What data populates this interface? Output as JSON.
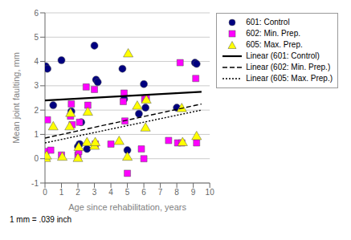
{
  "chart_data": {
    "type": "scatter",
    "xlabel": "Age since rehabilitation, years",
    "ylabel": "Mean joint faulting, mm",
    "xlim": [
      0,
      10
    ],
    "ylim": [
      -1,
      6
    ],
    "xticks": [
      0,
      1,
      2,
      3,
      4,
      5,
      6,
      7,
      8,
      9,
      10
    ],
    "yticks": [
      -1,
      0,
      1,
      2,
      3,
      4,
      5,
      6
    ],
    "grid": "y",
    "legend": "upper right",
    "annotations": [
      "1 mm = .039 inch"
    ],
    "series": [
      {
        "name": "601: Control",
        "type": "scatter",
        "color": "#000080",
        "marker": "circle",
        "x": [
          0.05,
          0.15,
          0.5,
          1.0,
          1.6,
          2.0,
          2.1,
          2.2,
          2.55,
          3.0,
          3.1,
          3.2,
          4.7,
          4.8,
          5.0,
          5.7,
          6.0,
          6.1,
          8.0,
          9.1,
          9.2
        ],
        "values": [
          3.8,
          3.7,
          2.2,
          4.05,
          1.95,
          0.5,
          0.6,
          1.5,
          0.4,
          4.65,
          3.25,
          3.15,
          3.7,
          2.45,
          0.35,
          1.85,
          3.07,
          2.1,
          2.1,
          3.95,
          3.9
        ]
      },
      {
        "name": "602: Min. Prep.",
        "type": "scatter",
        "color": "#FF00FF",
        "marker": "square",
        "x": [
          0.05,
          0.15,
          0.35,
          1.0,
          1.55,
          1.6,
          1.65,
          2.0,
          2.05,
          2.1,
          2.5,
          2.6,
          3.0,
          3.05,
          4.0,
          4.75,
          4.8,
          4.85,
          5.0,
          5.85,
          6.0,
          6.05,
          6.15,
          7.5,
          8.05,
          8.2,
          8.3,
          9.15,
          9.2
        ],
        "values": [
          0.3,
          1.6,
          0.35,
          0.15,
          1.75,
          2.25,
          1.4,
          0.15,
          0.3,
          1.5,
          2.95,
          2.2,
          2.85,
          0.6,
          0.6,
          2.35,
          2.7,
          1.55,
          -0.6,
          0.4,
          0.0,
          2.45,
          2.5,
          0.75,
          0.65,
          3.95,
          0.65,
          3.3,
          0.65
        ]
      },
      {
        "name": "605: Max. Prep.",
        "type": "scatter",
        "color": "#FFFF00",
        "marker": "triangle",
        "x": [
          0.05,
          0.1,
          0.5,
          1.05,
          1.5,
          1.55,
          2.0,
          2.05,
          2.55,
          2.6,
          3.0,
          3.05,
          4.5,
          5.0,
          5.05,
          5.6,
          6.1,
          6.15,
          8.3,
          8.35,
          9.2
        ],
        "values": [
          0.0,
          0.1,
          1.3,
          0.05,
          1.3,
          1.85,
          0.0,
          0.45,
          0.65,
          1.9,
          0.5,
          0.65,
          0.7,
          0.05,
          4.3,
          2.15,
          1.25,
          2.4,
          2.05,
          0.65,
          0.9
        ]
      },
      {
        "name": "Linear (601: Control)",
        "type": "line",
        "color": "#000000",
        "line_style": "solid",
        "x": [
          0,
          9.5
        ],
        "values": [
          2.4,
          2.75
        ]
      },
      {
        "name": "Linear (602: Min. Prep.)",
        "type": "line",
        "color": "#000000",
        "line_style": "dashed",
        "x": [
          0,
          9.5
        ],
        "values": [
          0.85,
          2.25
        ]
      },
      {
        "name": "Linear (605: Max. Prep.)",
        "type": "line",
        "color": "#000000",
        "line_style": "dotted",
        "x": [
          0,
          9.5
        ],
        "values": [
          0.65,
          2.0
        ]
      }
    ]
  }
}
